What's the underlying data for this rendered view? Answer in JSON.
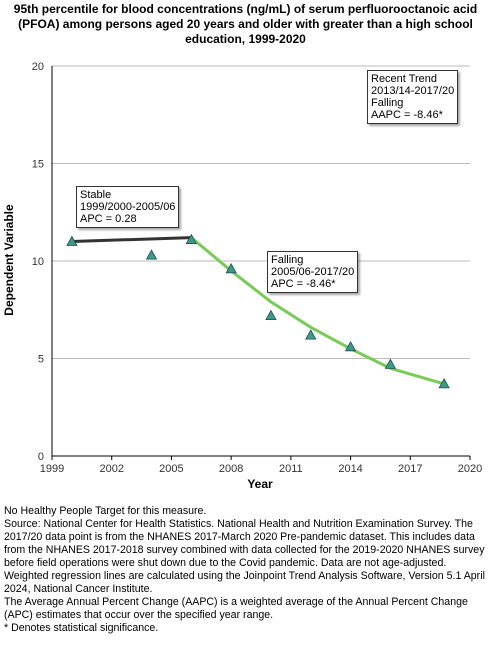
{
  "chart_data": {
    "type": "scatter",
    "title": "95th percentile for blood concentrations (ng/mL) of serum perfluorooctanoic acid\n(PFOA) among persons aged 20 years and older with greater than a high school\neducation, 1999-2020",
    "xlabel": "Year",
    "ylabel": "Dependent Variable",
    "xlim": [
      1999,
      2020
    ],
    "ylim": [
      0,
      20
    ],
    "x_ticks": [
      "1999",
      "2002",
      "2005",
      "2008",
      "2011",
      "2014",
      "2017",
      "2020"
    ],
    "y_ticks": [
      "0",
      "5",
      "10",
      "15",
      "20"
    ],
    "grid": "horizontal",
    "points": [
      {
        "x": 2000.0,
        "y": 11.0
      },
      {
        "x": 2004.0,
        "y": 10.3
      },
      {
        "x": 2006.0,
        "y": 11.1
      },
      {
        "x": 2008.0,
        "y": 9.6
      },
      {
        "x": 2010.0,
        "y": 7.2
      },
      {
        "x": 2012.0,
        "y": 6.2
      },
      {
        "x": 2014.0,
        "y": 5.6
      },
      {
        "x": 2016.0,
        "y": 4.7
      },
      {
        "x": 2018.7,
        "y": 3.7
      }
    ],
    "trend_segments": [
      {
        "label": "Stable",
        "x": [
          2000.0,
          2006.0
        ],
        "y": [
          11.0,
          11.2
        ],
        "color": "#333333"
      },
      {
        "label": "Falling",
        "x": [
          2006.0,
          2008.0,
          2010.0,
          2012.0,
          2014.0,
          2016.0,
          2018.7
        ],
        "y": [
          11.2,
          9.5,
          7.9,
          6.6,
          5.5,
          4.5,
          3.7
        ],
        "color": "#77cc55"
      }
    ],
    "annotations": [
      {
        "lines": [
          "Stable",
          "1999/2000-2005/06",
          "APC =  0.28"
        ]
      },
      {
        "lines": [
          "Falling",
          "2005/06-2017/20",
          "APC = -8.46*"
        ]
      },
      {
        "lines": [
          "Recent Trend",
          "2013/14-2017/20",
          "Falling",
          "AAPC = -8.46*"
        ]
      }
    ],
    "marker_color": "#3c9a8a"
  },
  "footnotes": [
    "No Healthy People Target for this measure.",
    "Source: National Center for Health Statistics. National Health and Nutrition Examination Survey. The 2017/20 data point is from the NHANES 2017-March 2020 Pre-pandemic dataset. This includes data from the NHANES 2017-2018 survey combined with data collected for the 2019-2020 NHANES survey before field operations were shut down due to the Covid pandemic. Data are not age-adjusted.",
    "Weighted regression lines are calculated using the Joinpoint Trend Analysis Software, Version 5.1 April 2024, National Cancer Institute.",
    "The Average Annual Percent Change (AAPC) is a weighted average of the Annual Percent Change (APC) estimates that occur over the specified year range.",
    "* Denotes statistical significance."
  ]
}
